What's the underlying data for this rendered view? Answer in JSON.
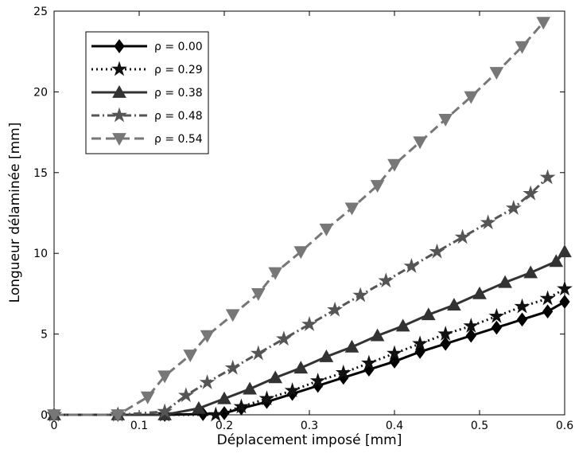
{
  "chart_data": {
    "type": "line",
    "x_label": "Déplacement imposé [mm]",
    "y_label": "Longueur délaminée [mm]",
    "xlim": [
      0,
      0.6
    ],
    "xticks": [
      0,
      0.1,
      0.2,
      0.3,
      0.4,
      0.5,
      0.6
    ],
    "ylim": [
      0,
      25
    ],
    "yticks": [
      0,
      5,
      10,
      15,
      20,
      25
    ],
    "legend": "upper left",
    "series": [
      {
        "name": "ρ = 0.00",
        "color": "#000000",
        "linestyle": "solid",
        "marker": "diamond",
        "x": [
          0,
          0.075,
          0.13,
          0.175,
          0.2,
          0.22,
          0.25,
          0.28,
          0.31,
          0.34,
          0.37,
          0.4,
          0.43,
          0.46,
          0.49,
          0.52,
          0.55,
          0.58,
          0.6
        ],
        "values": [
          0,
          0,
          0,
          0.05,
          0.1,
          0.4,
          0.8,
          1.3,
          1.8,
          2.3,
          2.8,
          3.3,
          3.9,
          4.4,
          4.9,
          5.4,
          5.9,
          6.4,
          7.0
        ]
      },
      {
        "name": "ρ = 0.29",
        "color": "#111111",
        "linestyle": "dotted",
        "marker": "star",
        "x": [
          0,
          0.075,
          0.13,
          0.19,
          0.22,
          0.25,
          0.28,
          0.31,
          0.34,
          0.37,
          0.4,
          0.43,
          0.46,
          0.49,
          0.52,
          0.55,
          0.58,
          0.6
        ],
        "values": [
          0,
          0,
          0,
          0,
          0.5,
          1.0,
          1.5,
          2.1,
          2.6,
          3.2,
          3.8,
          4.4,
          5.0,
          5.5,
          6.1,
          6.7,
          7.2,
          7.8
        ]
      },
      {
        "name": "ρ = 0.38",
        "color": "#333333",
        "linestyle": "solid",
        "marker": "triangle-up",
        "x": [
          0,
          0.075,
          0.13,
          0.17,
          0.2,
          0.23,
          0.26,
          0.29,
          0.32,
          0.35,
          0.38,
          0.41,
          0.44,
          0.47,
          0.5,
          0.53,
          0.56,
          0.59,
          0.6
        ],
        "values": [
          0,
          0,
          0,
          0.4,
          1.0,
          1.6,
          2.3,
          2.9,
          3.6,
          4.2,
          4.9,
          5.5,
          6.2,
          6.8,
          7.5,
          8.2,
          8.8,
          9.5,
          10.1
        ]
      },
      {
        "name": "ρ = 0.48",
        "color": "#555555",
        "linestyle": "dashdot",
        "marker": "star",
        "x": [
          0,
          0.075,
          0.13,
          0.155,
          0.18,
          0.21,
          0.24,
          0.27,
          0.3,
          0.33,
          0.36,
          0.39,
          0.42,
          0.45,
          0.48,
          0.51,
          0.54,
          0.56,
          0.58
        ],
        "values": [
          0,
          0,
          0.2,
          1.2,
          2.0,
          2.9,
          3.8,
          4.7,
          5.6,
          6.5,
          7.4,
          8.3,
          9.2,
          10.1,
          11.0,
          11.9,
          12.8,
          13.7,
          14.7
        ]
      },
      {
        "name": "ρ = 0.54",
        "color": "#777777",
        "linestyle": "dashed",
        "marker": "triangle-down",
        "x": [
          0,
          0.075,
          0.11,
          0.13,
          0.16,
          0.18,
          0.21,
          0.24,
          0.26,
          0.29,
          0.32,
          0.35,
          0.38,
          0.4,
          0.43,
          0.46,
          0.49,
          0.52,
          0.55,
          0.575
        ],
        "values": [
          0,
          0,
          1.1,
          2.4,
          3.7,
          4.9,
          6.2,
          7.5,
          8.8,
          10.1,
          11.5,
          12.8,
          14.2,
          15.5,
          16.9,
          18.3,
          19.7,
          21.2,
          22.8,
          24.3
        ]
      }
    ]
  }
}
